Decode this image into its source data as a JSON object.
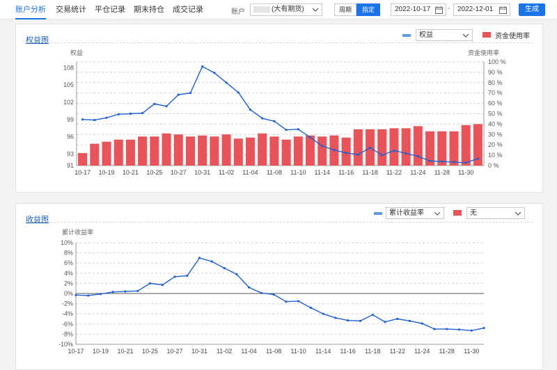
{
  "nav": {
    "tabs": [
      "账户分析",
      "交易统计",
      "平仓记录",
      "期末持仓",
      "成交记录"
    ],
    "active_index": 0
  },
  "filters": {
    "account_label": "账户",
    "account_value": "(大有期货)",
    "period_options": [
      "周期",
      "指定"
    ],
    "period_active": "指定",
    "date_start": "2022-10-17",
    "date_sep": "-",
    "date_end": "2022-12-01",
    "generate_label": "生成"
  },
  "colors": {
    "accent": "#1a73e8",
    "line": "#1f5fcf",
    "bar": "#e8545a",
    "legend_line": "#5b9bea"
  },
  "equity_panel": {
    "title": "权益图",
    "legend_select": "权益",
    "legend_bar_label": "资金使用率",
    "left_axis_title": "权益",
    "right_axis_title": "资金使用率"
  },
  "return_panel": {
    "title": "收益图",
    "legend_select": "累计收益率",
    "legend_second_select": "无",
    "axis_title": "累计收益率"
  },
  "chart_data": [
    {
      "type": "bar",
      "title": "权益图",
      "x": [
        "10-17",
        "10-18",
        "10-19",
        "10-20",
        "10-21",
        "10-24",
        "10-25",
        "10-26",
        "10-27",
        "10-28",
        "10-31",
        "11-01",
        "11-02",
        "11-03",
        "11-04",
        "11-07",
        "11-08",
        "11-09",
        "11-10",
        "11-11",
        "11-14",
        "11-15",
        "11-16",
        "11-17",
        "11-18",
        "11-21",
        "11-22",
        "11-23",
        "11-24",
        "11-25",
        "11-28",
        "11-29",
        "11-30",
        "12-01"
      ],
      "x_tick_labels": [
        "10-17",
        "10-19",
        "10-21",
        "10-25",
        "10-27",
        "10-31",
        "11-02",
        "11-04",
        "11-08",
        "11-10",
        "11-14",
        "11-16",
        "11-18",
        "11-22",
        "11-24",
        "11-28",
        "11-30"
      ],
      "series": [
        {
          "name": "权益",
          "type": "line",
          "axis": "left",
          "values": [
            99.0,
            98.9,
            99.3,
            99.9,
            100.0,
            100.1,
            101.7,
            101.3,
            103.3,
            103.6,
            108.2,
            107.1,
            105.4,
            103.7,
            100.7,
            99.2,
            98.7,
            97.2,
            97.3,
            95.9,
            94.4,
            93.7,
            93.2,
            92.9,
            94.1,
            92.8,
            93.6,
            93.1,
            92.6,
            91.8,
            91.7,
            91.6,
            91.5,
            92.2
          ]
        },
        {
          "name": "资金使用率",
          "type": "bar",
          "axis": "right",
          "values": [
            12,
            21,
            23,
            25,
            25,
            28,
            28,
            31,
            30,
            28,
            29,
            28,
            30,
            26,
            27,
            31,
            28,
            25,
            28,
            29,
            28,
            29,
            27,
            35,
            35,
            35,
            36,
            36,
            38,
            33,
            33,
            33,
            39,
            40
          ]
        }
      ],
      "yleft": {
        "ticks": [
          93,
          96,
          99,
          102,
          105,
          108
        ],
        "min_label": "91",
        "range": [
          91,
          109
        ]
      },
      "yright": {
        "ticks": [
          "0 %",
          "10 %",
          "20 %",
          "30 %",
          "40 %",
          "50 %",
          "60 %",
          "70 %",
          "80 %",
          "90 %",
          "100 %"
        ],
        "range": [
          0,
          100
        ]
      },
      "grid": true
    },
    {
      "type": "line",
      "title": "收益图",
      "x": [
        "10-17",
        "10-18",
        "10-19",
        "10-20",
        "10-21",
        "10-24",
        "10-25",
        "10-26",
        "10-27",
        "10-28",
        "10-31",
        "11-01",
        "11-02",
        "11-03",
        "11-04",
        "11-07",
        "11-08",
        "11-09",
        "11-10",
        "11-11",
        "11-14",
        "11-15",
        "11-16",
        "11-17",
        "11-18",
        "11-21",
        "11-22",
        "11-23",
        "11-24",
        "11-25",
        "11-28",
        "11-29",
        "11-30",
        "12-01"
      ],
      "x_tick_labels": [
        "10-17",
        "10-19",
        "10-21",
        "10-25",
        "10-27",
        "10-31",
        "11-02",
        "11-04",
        "11-08",
        "11-10",
        "11-14",
        "11-16",
        "11-18",
        "11-22",
        "11-24",
        "11-28",
        "11-30"
      ],
      "series": [
        {
          "name": "累计收益率",
          "values": [
            -0.3,
            -0.4,
            -0.1,
            0.3,
            0.4,
            0.5,
            2.0,
            1.7,
            3.3,
            3.5,
            7.0,
            6.3,
            5.0,
            3.8,
            1.2,
            0.1,
            -0.2,
            -1.6,
            -1.5,
            -2.8,
            -4.0,
            -4.8,
            -5.3,
            -5.4,
            -4.2,
            -5.6,
            -5.0,
            -5.4,
            -5.9,
            -7.0,
            -7.0,
            -7.1,
            -7.3,
            -6.8
          ]
        }
      ],
      "yticks": [
        "-10%",
        "-8%",
        "-6%",
        "-4%",
        "-2%",
        "0%",
        "2%",
        "4%",
        "6%",
        "8%",
        "10%"
      ],
      "ylim": [
        -10,
        10
      ],
      "grid": true
    }
  ]
}
